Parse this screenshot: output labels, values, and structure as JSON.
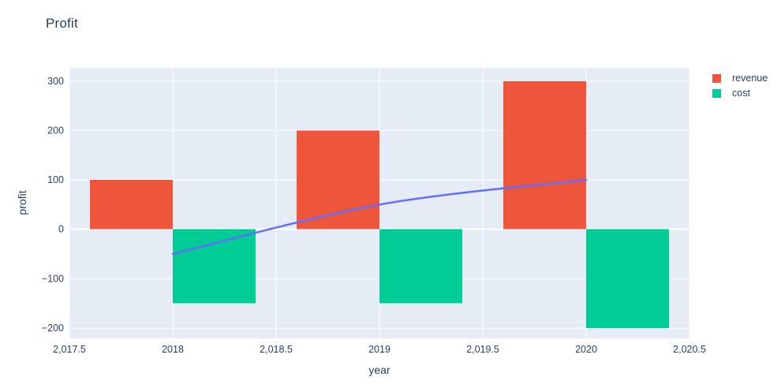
{
  "chart_data": {
    "type": "bar",
    "title": "Profit",
    "xlabel": "year",
    "ylabel": "profit",
    "categories": [
      2018,
      2019,
      2020
    ],
    "series": [
      {
        "name": "revenue",
        "type": "bar",
        "color": "#EF553B",
        "values": [
          100,
          200,
          300
        ]
      },
      {
        "name": "cost",
        "type": "bar",
        "color": "#00CC96",
        "values": [
          -150,
          -150,
          -200
        ]
      },
      {
        "name": "profit",
        "type": "line",
        "color": "#636EFA",
        "values": [
          -50,
          50,
          100
        ]
      }
    ],
    "bar_width": 0.4,
    "xlim": [
      2017.5,
      2020.5
    ],
    "ylim": [
      -221,
      327
    ],
    "x_ticks": [
      {
        "v": 2017.5,
        "label": "2,017.5"
      },
      {
        "v": 2018,
        "label": "2018"
      },
      {
        "v": 2018.5,
        "label": "2,018.5"
      },
      {
        "v": 2019,
        "label": "2019"
      },
      {
        "v": 2019.5,
        "label": "2,019.5"
      },
      {
        "v": 2020,
        "label": "2020"
      },
      {
        "v": 2020.5,
        "label": "2,020.5"
      }
    ],
    "y_ticks": [
      {
        "v": 300,
        "label": "300"
      },
      {
        "v": 200,
        "label": "200"
      },
      {
        "v": 100,
        "label": "100"
      },
      {
        "v": 0,
        "label": "0"
      },
      {
        "v": -100,
        "label": "−100"
      },
      {
        "v": -200,
        "label": "−200"
      }
    ],
    "legend": [
      {
        "label": "revenue",
        "color": "#EF553B"
      },
      {
        "label": "cost",
        "color": "#00CC96"
      }
    ],
    "colors": {
      "plot_bg": "#E5ECF6",
      "grid": "#FFFFFF",
      "text": "#2A3F5F",
      "page_bg": "#FFFFFF"
    },
    "grid": "on",
    "legend_position": "right-top"
  }
}
